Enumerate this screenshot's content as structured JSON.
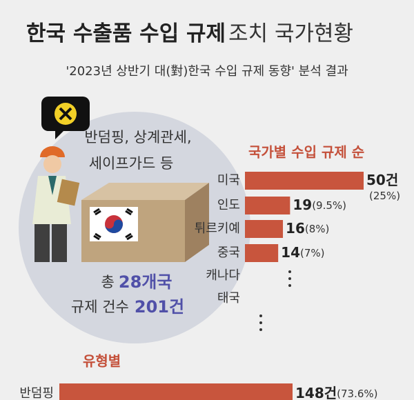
{
  "header": {
    "title": "한국 수출품 수입 규제",
    "title_light": "조치 국가현황",
    "subtitle": "'2023년 상반기 대(對)한국 수입 규제 동향' 분석 결과"
  },
  "summary": {
    "types_line1": "반덤핑, 상계관세,",
    "types_line2": "세이프가드 등",
    "total_prefix": "총",
    "total_countries": "28개국",
    "cases_prefix": "규제 건수",
    "total_cases": "201건"
  },
  "chart_data": [
    {
      "type": "bar",
      "title": "국가별 수입 규제 순",
      "color": "#c8553d",
      "categories": [
        "미국",
        "인도",
        "튀르키예",
        "중국",
        "캐나다",
        "태국"
      ],
      "values": [
        50,
        19,
        16,
        14,
        null,
        null
      ],
      "value_labels": [
        "50건",
        "19",
        "16",
        "14",
        null,
        null
      ],
      "shares": [
        25,
        9.5,
        8,
        7,
        null,
        null
      ],
      "share_labels": [
        "(25%)",
        "(9.5%)",
        "(8%)",
        "(7%)",
        null,
        null
      ]
    },
    {
      "type": "bar",
      "title": "유형별",
      "color": "#c8553d",
      "categories": [
        "반덤핑"
      ],
      "values": [
        148
      ],
      "value_labels": [
        "148건"
      ],
      "shares": [
        73.6
      ],
      "share_labels": [
        "(73.6%)"
      ]
    }
  ]
}
